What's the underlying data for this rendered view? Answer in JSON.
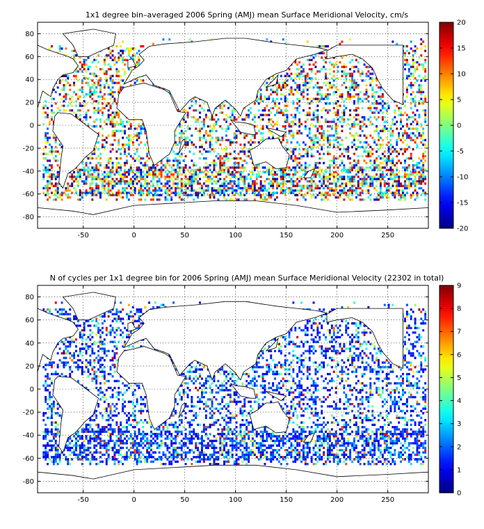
{
  "chart_data": [
    {
      "type": "heatmap",
      "title": "1x1 degree bin–averaged 2006 Spring (AMJ) mean Surface Meridional Velocity, cm/s",
      "xlabel": "",
      "ylabel": "",
      "xlim": [
        -95,
        290
      ],
      "ylim": [
        -90,
        90
      ],
      "x_ticks": [
        -50,
        0,
        50,
        100,
        150,
        200,
        250
      ],
      "y_ticks": [
        80,
        60,
        40,
        20,
        0,
        -20,
        -40,
        -60,
        -80
      ],
      "grid": "dotted",
      "colormap": "jet",
      "colorbar": {
        "min": -20,
        "max": 20,
        "ticks": [
          20,
          15,
          10,
          5,
          0,
          -5,
          -10,
          -15,
          -20
        ]
      }
    },
    {
      "type": "heatmap",
      "title": "N of cycles per 1x1 degree bin for 2006 Spring (AMJ) mean Surface Meridional Velocity (22302 in total)",
      "xlabel": "",
      "ylabel": "",
      "xlim": [
        -95,
        290
      ],
      "ylim": [
        -90,
        90
      ],
      "x_ticks": [
        -50,
        0,
        50,
        100,
        150,
        200,
        250
      ],
      "y_ticks": [
        80,
        60,
        40,
        20,
        0,
        -20,
        -40,
        -60,
        -80
      ],
      "grid": "dotted",
      "colormap": "jet",
      "colorbar": {
        "min": 0,
        "max": 9,
        "ticks": [
          9,
          8,
          7,
          6,
          5,
          4,
          3,
          2,
          1,
          0
        ]
      }
    }
  ]
}
